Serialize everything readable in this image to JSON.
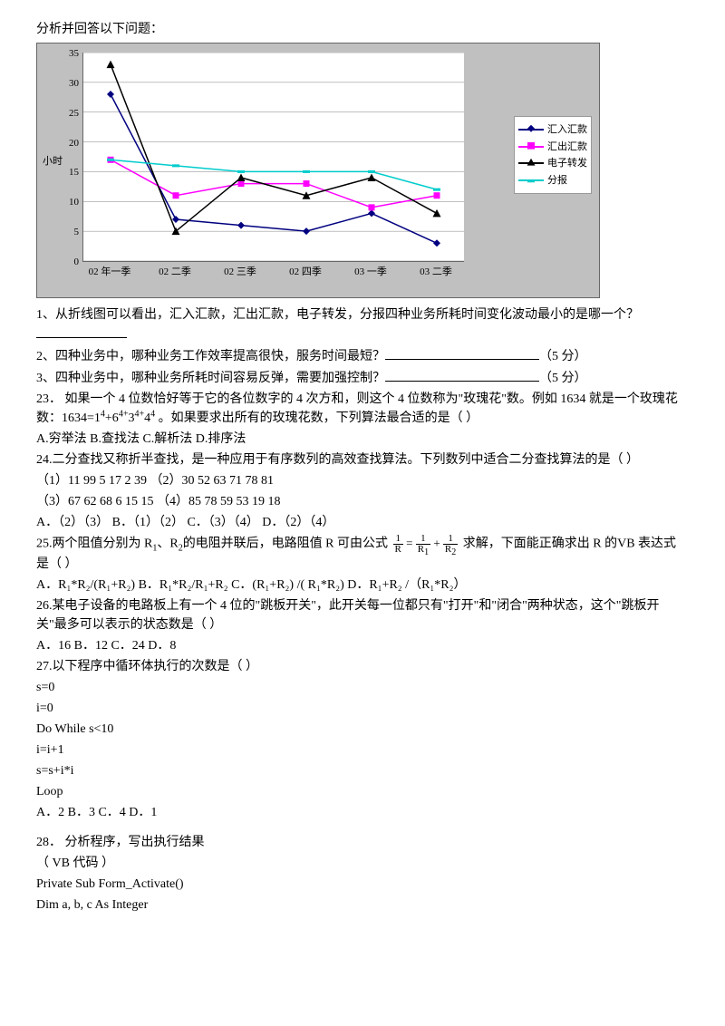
{
  "intro": "分析并回答以下问题：",
  "chart": {
    "type": "line",
    "background_color": "#c0c0c0",
    "plot_bg": "#ffffff",
    "grid_color": "#808080",
    "yaxis_title": "小时",
    "ylim": [
      0,
      35
    ],
    "ytick_step": 5,
    "yticks": [
      "0",
      "5",
      "10",
      "15",
      "20",
      "25",
      "30",
      "35"
    ],
    "categories": [
      "02 年一季",
      "02 二季",
      "02 三季",
      "02 四季",
      "03 一季",
      "03 二季"
    ],
    "series": [
      {
        "name": "汇入汇款",
        "color": "#000080",
        "marker": "diamond",
        "values": [
          28,
          7,
          6,
          5,
          8,
          3
        ]
      },
      {
        "name": "汇出汇款",
        "color": "#ff00ff",
        "marker": "square",
        "values": [
          17,
          11,
          13,
          13,
          9,
          11
        ]
      },
      {
        "name": "电子转发",
        "color": "#000000",
        "marker": "triangle",
        "values": [
          33,
          5,
          14,
          11,
          14,
          8
        ]
      },
      {
        "name": "分报",
        "color": "#00cccc",
        "marker": "dash",
        "values": [
          17,
          16,
          15,
          15,
          15,
          12
        ]
      }
    ]
  },
  "q1_prefix": "1、从折线图可以看出，汇入汇款，汇出汇款，电子转发，分报四种业务所耗时间变化波动最小的是哪一个？",
  "q2": "2、四种业务中，哪种业务工作效率提高很快，服务时间最短？",
  "q2_pts": "（5 分）",
  "q3": "3、四种业务中，哪种业务所耗时间容易反弹，需要加强控制？",
  "q3_pts": "（5 分）",
  "q23_a": "23．  如果一个 4 位数恰好等于它的各位数字的 4 次方和，则这个 4 位数称为\"玫瑰花\"数。例如 1634 就是一个玫瑰花数：1634=1",
  "q23_b": "+6",
  "q23_c": "3",
  "q23_d": "4",
  "q23_e": " 。如果要求出所有的玫瑰花数，下列算法最合适的是（      ）",
  "q23_opts": "A.穷举法      B.查找法      C.解析法      D.排序法",
  "q24_a": "24.二分查找又称折半查找，是一种应用于有序数列的高效查找算法。下列数列中适合二分查找算法的是（      ）",
  "q24_r1": "（1）11    99      5    17    2    39         （2）30    52    63    71    78    81",
  "q24_r2": "（3）67    62    68    6    15    15         （4）85    78    59    53    19    18",
  "q24_opts": "A．（2）（3）               B．（1）（2）               C．（3）（4）               D．（2）（4）",
  "q25_a": "25.两个阻值分别为 R",
  "q25_b": "、R",
  "q25_c": "的电阻并联后，电路阻值 R 可由公式",
  "q25_d": "求解，下面能正确求出 R 的VB 表达式是（     ）",
  "q25_opts": "A．R₁*R₂/(R₁+R₂)  B．R₁*R₂/R₁+R₂  C．(R₁+R₂) /( R₁*R₂)      D．R₁+R₂ /（R₁*R₂）",
  "q26_a": "26.某电子设备的电路板上有一个 4 位的\"跳板开关\"，此开关每一位都只有\"打开\"和\"闭合\"两种状态，这个\"跳板开关\"最多可以表示的状态数是（      ）",
  "q26_opts": "A．16            B．12            C．24            D．8",
  "q27_a": "27.以下程序中循环体执行的次数是（       ）",
  "code_lines": [
    "s=0",
    "i=0",
    "Do While s<10",
    "i=i+1",
    "s=s+i*i",
    "Loop"
  ],
  "q27_opts": "A．2            B．3            C．4            D．1",
  "q28_a": "28．  分析程序，写出执行结果",
  "q28_b": "（ VB 代码 ）",
  "q28_c": "Private Sub Form_Activate()",
  "q28_d": " Dim a, b, c As Integer"
}
